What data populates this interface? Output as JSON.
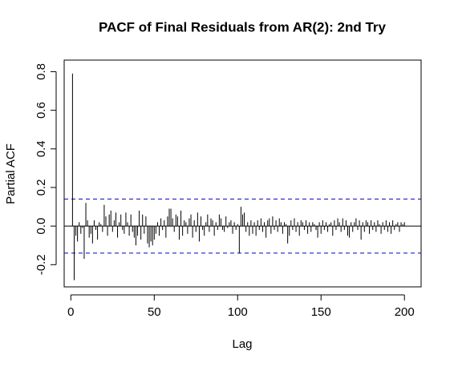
{
  "chart_data": {
    "type": "pacf",
    "title": "PACF of Final Residuals from AR(2): 2nd Try",
    "x_label": "Lag",
    "y_label": "Partial ACF",
    "color": "#000000",
    "ci_color": "#0000cc",
    "ci": [
      -0.14,
      0.14
    ],
    "xlim": [
      -4,
      210
    ],
    "ylim": [
      -0.315,
      0.86
    ],
    "xticks": [
      0,
      50,
      100,
      150,
      200
    ],
    "yticks": [
      -0.2,
      {
        "value": 0,
        "label": "0.0"
      },
      0.2,
      0.4,
      0.6,
      0.8
    ],
    "x": [
      1,
      2,
      3,
      4,
      5,
      6,
      7,
      8,
      9,
      10,
      11,
      12,
      13,
      14,
      15,
      16,
      17,
      18,
      19,
      20,
      21,
      22,
      23,
      24,
      25,
      26,
      27,
      28,
      29,
      30,
      31,
      32,
      33,
      34,
      35,
      36,
      37,
      38,
      39,
      40,
      41,
      42,
      43,
      44,
      45,
      46,
      47,
      48,
      49,
      50,
      51,
      52,
      53,
      54,
      55,
      56,
      57,
      58,
      59,
      60,
      61,
      62,
      63,
      64,
      65,
      66,
      67,
      68,
      69,
      70,
      71,
      72,
      73,
      74,
      75,
      76,
      77,
      78,
      79,
      80,
      81,
      82,
      83,
      84,
      85,
      86,
      87,
      88,
      89,
      90,
      91,
      92,
      93,
      94,
      95,
      96,
      97,
      98,
      99,
      100,
      101,
      102,
      103,
      104,
      105,
      106,
      107,
      108,
      109,
      110,
      111,
      112,
      113,
      114,
      115,
      116,
      117,
      118,
      119,
      120,
      121,
      122,
      123,
      124,
      125,
      126,
      127,
      128,
      129,
      130,
      131,
      132,
      133,
      134,
      135,
      136,
      137,
      138,
      139,
      140,
      141,
      142,
      143,
      144,
      145,
      146,
      147,
      148,
      149,
      150,
      151,
      152,
      153,
      154,
      155,
      156,
      157,
      158,
      159,
      160,
      161,
      162,
      163,
      164,
      165,
      166,
      167,
      168,
      169,
      170,
      171,
      172,
      173,
      174,
      175,
      176,
      177,
      178,
      179,
      180,
      181,
      182,
      183,
      184,
      185,
      186,
      187,
      188,
      189,
      190,
      191,
      192,
      193,
      194,
      195,
      196,
      197,
      198,
      199,
      200
    ],
    "values": [
      0.79,
      -0.28,
      -0.05,
      -0.08,
      0.02,
      -0.04,
      -0.01,
      -0.17,
      0.12,
      0.03,
      -0.06,
      -0.04,
      -0.09,
      0.03,
      -0.02,
      -0.07,
      0.02,
      0.01,
      -0.03,
      0.11,
      0.05,
      -0.05,
      0.06,
      0.08,
      -0.03,
      0.03,
      0.07,
      -0.06,
      0.02,
      0.06,
      -0.02,
      -0.04,
      0.07,
      0.02,
      -0.05,
      0.06,
      -0.03,
      -0.06,
      -0.1,
      -0.05,
      0.08,
      -0.07,
      0.06,
      -0.04,
      0.05,
      -0.09,
      -0.11,
      -0.08,
      -0.1,
      -0.07,
      -0.04,
      0.02,
      -0.05,
      0.04,
      -0.02,
      0.03,
      -0.06,
      0.05,
      0.09,
      0.09,
      0.04,
      -0.03,
      0.06,
      0.05,
      -0.07,
      0.08,
      -0.05,
      0.03,
      0.02,
      -0.04,
      0.04,
      0.06,
      -0.06,
      0.03,
      -0.03,
      0.07,
      -0.08,
      0.05,
      -0.02,
      -0.05,
      0.02,
      0.06,
      -0.03,
      0.04,
      0.03,
      -0.05,
      0.02,
      -0.02,
      0.06,
      0.04,
      -0.02,
      -0.03,
      0.05,
      -0.01,
      0.02,
      0.03,
      -0.04,
      0.02,
      -0.02,
      0.01,
      -0.14,
      0.1,
      0.06,
      0.07,
      -0.03,
      0.02,
      -0.05,
      0.03,
      -0.04,
      0.02,
      -0.05,
      0.03,
      -0.02,
      0.04,
      -0.03,
      0.02,
      -0.06,
      0.03,
      0.04,
      -0.04,
      0.05,
      -0.02,
      0.03,
      -0.03,
      0.04,
      0.02,
      -0.04,
      0.02,
      0.01,
      -0.09,
      -0.05,
      0.03,
      -0.02,
      0.04,
      -0.03,
      0.02,
      -0.05,
      0.03,
      0.02,
      -0.02,
      0.03,
      -0.04,
      0.02,
      -0.03,
      0.02,
      0.01,
      -0.02,
      -0.06,
      0.02,
      -0.04,
      0.03,
      -0.02,
      0.02,
      -0.03,
      0.01,
      0.02,
      -0.05,
      0.03,
      -0.02,
      0.04,
      0.02,
      -0.03,
      0.04,
      -0.02,
      0.03,
      -0.05,
      -0.06,
      0.02,
      -0.03,
      0.02,
      0.04,
      -0.02,
      0.03,
      -0.07,
      0.02,
      -0.03,
      0.03,
      0.02,
      -0.04,
      0.03,
      -0.02,
      0.02,
      -0.03,
      0.03,
      0.01,
      -0.04,
      0.02,
      -0.02,
      0.03,
      -0.03,
      0.02,
      -0.04,
      0.03,
      -0.02,
      0.01,
      0.02,
      -0.03,
      0.02,
      0.01,
      0.02
    ]
  }
}
